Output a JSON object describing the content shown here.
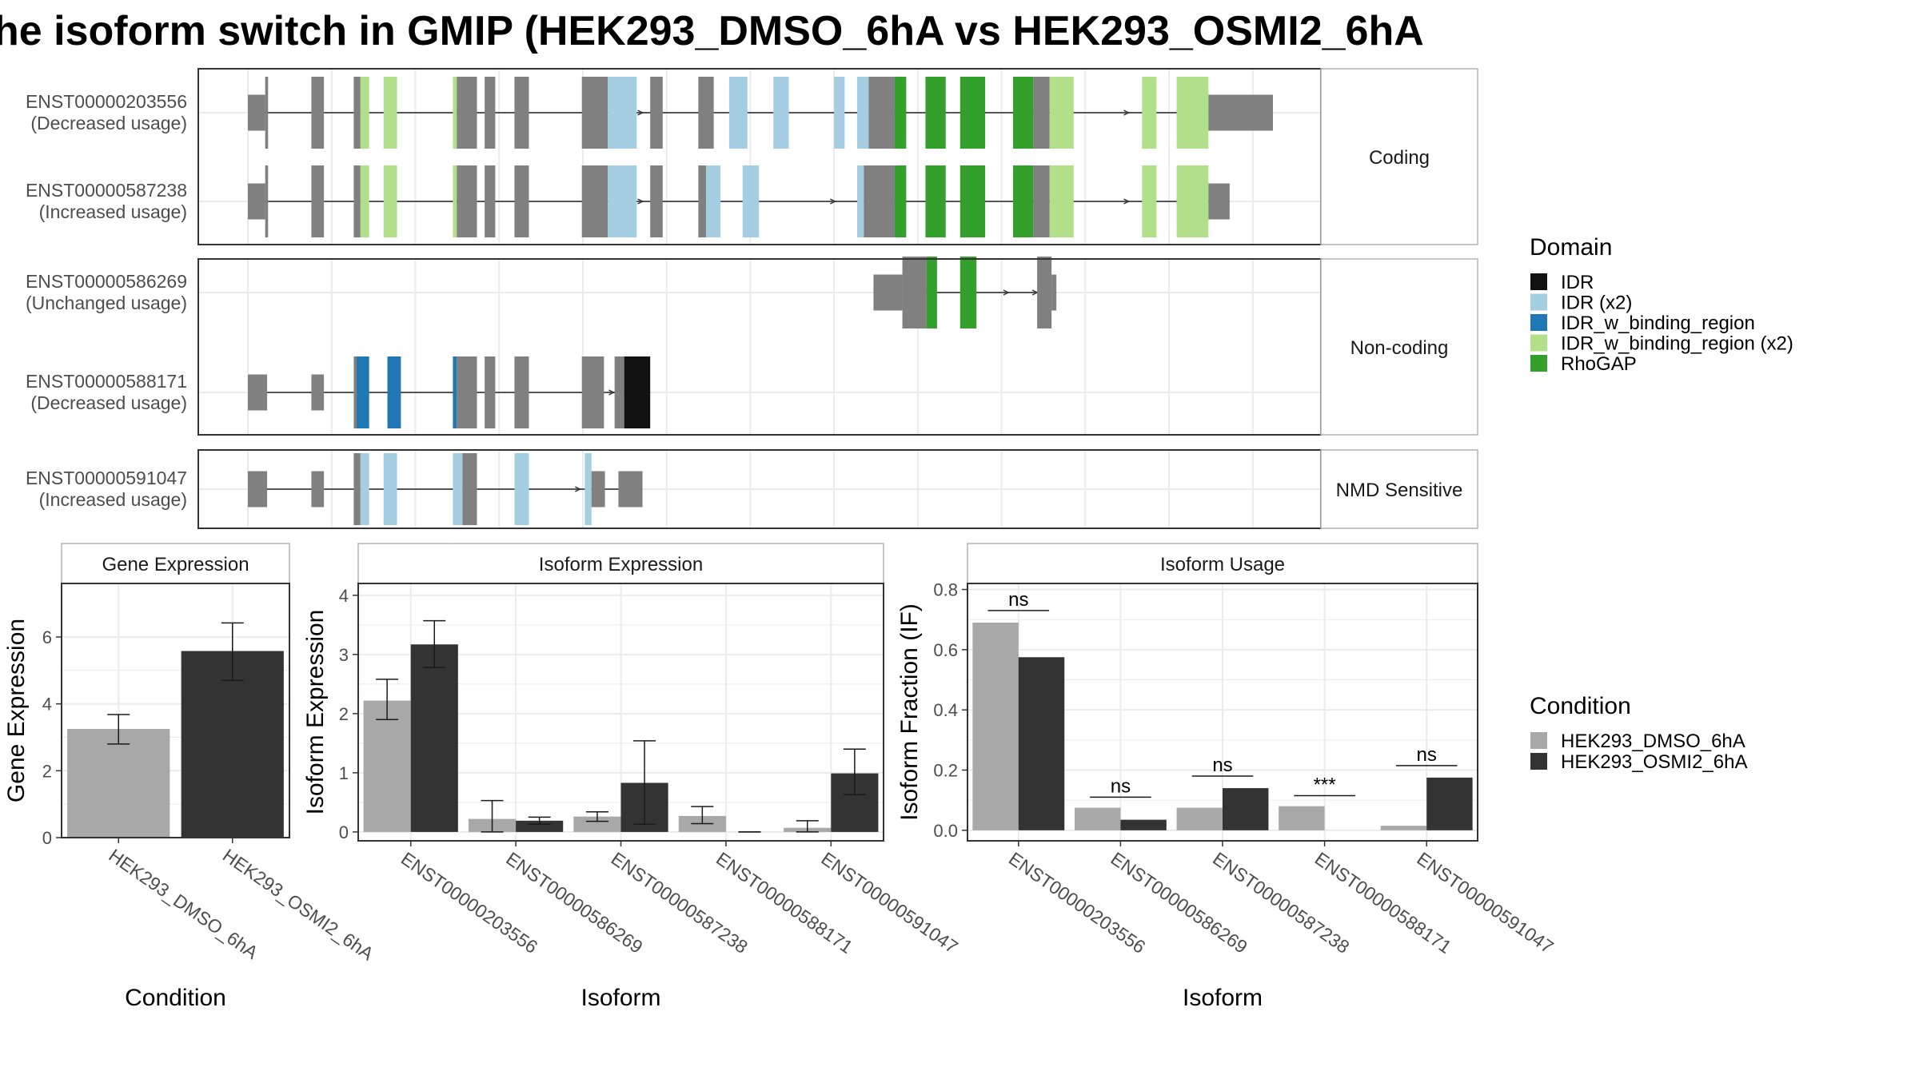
{
  "title": "he isoform switch in GMIP (HEK293_DMSO_6hA vs HEK293_OSMI2_6hA",
  "colors": {
    "exon": "#808080",
    "intron": "#555555",
    "IDR": "#111111",
    "IDR_x2": "#a6cee3",
    "IDR_w_binding_region": "#1f78b4",
    "IDR_w_binding_region_x2": "#b2df8a",
    "RhoGAP": "#33a02c",
    "dmso": "#a8a8a8",
    "osmi": "#333333",
    "grid": "#ebebeb",
    "panel_border": "#333333",
    "strip_border": "#b3b3b3"
  },
  "structure": {
    "groups": [
      {
        "label": "Coding",
        "tracks": [
          {
            "id": "ENST00000203556",
            "usage": "(Decreased usage)",
            "exons": [
              [
                0,
                18,
                "exon",
                0.5
              ],
              [
                18,
                21,
                "exon",
                1
              ],
              [
                66,
                79,
                "exon",
                1
              ],
              [
                110,
                117,
                "exon",
                1
              ],
              [
                117,
                126,
                "IDR_w_binding_region_x2",
                1
              ],
              [
                141,
                155,
                "IDR_w_binding_region_x2",
                1
              ],
              [
                213,
                217,
                "IDR_w_binding_region_x2",
                1
              ],
              [
                217,
                238,
                "exon",
                1
              ],
              [
                246,
                257,
                "exon",
                1
              ],
              [
                277,
                292,
                "exon",
                1
              ],
              [
                347,
                374,
                "exon",
                1
              ],
              [
                374,
                404,
                "IDR_x2",
                1
              ],
              [
                418,
                431,
                "exon",
                1
              ],
              [
                468,
                484,
                "exon",
                1
              ],
              [
                500,
                519,
                "IDR_x2",
                1
              ],
              [
                546,
                562,
                "IDR_x2",
                1
              ],
              [
                609,
                620,
                "IDR_x2",
                1
              ],
              [
                633,
                645,
                "IDR_x2",
                1
              ],
              [
                645,
                672,
                "exon",
                1
              ],
              [
                672,
                684,
                "RhoGAP",
                1
              ],
              [
                704,
                725,
                "RhoGAP",
                1
              ],
              [
                740,
                766,
                "RhoGAP",
                1
              ],
              [
                795,
                816,
                "RhoGAP",
                1
              ],
              [
                816,
                833,
                "exon",
                1
              ],
              [
                833,
                858,
                "IDR_w_binding_region_x2",
                1
              ],
              [
                929,
                944,
                "IDR_w_binding_region_x2",
                1
              ],
              [
                965,
                998,
                "IDR_w_binding_region_x2",
                1
              ],
              [
                998,
                1065,
                "exon",
                0.5
              ]
            ],
            "arrows": [
              380,
              410,
              915,
              970
            ]
          },
          {
            "id": "ENST00000587238",
            "usage": "(Increased usage)",
            "exons": [
              [
                0,
                18,
                "exon",
                0.5
              ],
              [
                18,
                21,
                "exon",
                1
              ],
              [
                66,
                79,
                "exon",
                1
              ],
              [
                110,
                117,
                "exon",
                1
              ],
              [
                117,
                126,
                "IDR_w_binding_region_x2",
                1
              ],
              [
                141,
                155,
                "IDR_w_binding_region_x2",
                1
              ],
              [
                213,
                217,
                "IDR_w_binding_region_x2",
                1
              ],
              [
                217,
                238,
                "exon",
                1
              ],
              [
                246,
                257,
                "exon",
                1
              ],
              [
                277,
                292,
                "exon",
                1
              ],
              [
                347,
                374,
                "exon",
                1
              ],
              [
                374,
                404,
                "IDR_x2",
                1
              ],
              [
                418,
                431,
                "exon",
                1
              ],
              [
                468,
                476,
                "exon",
                1
              ],
              [
                476,
                491,
                "IDR_x2",
                1
              ],
              [
                514,
                531,
                "IDR_x2",
                1
              ],
              [
                633,
                640,
                "IDR_x2",
                1
              ],
              [
                640,
                672,
                "exon",
                1
              ],
              [
                672,
                684,
                "RhoGAP",
                1
              ],
              [
                704,
                725,
                "RhoGAP",
                1
              ],
              [
                740,
                766,
                "RhoGAP",
                1
              ],
              [
                795,
                816,
                "RhoGAP",
                1
              ],
              [
                816,
                833,
                "exon",
                1
              ],
              [
                833,
                858,
                "IDR_w_binding_region_x2",
                1
              ],
              [
                929,
                944,
                "IDR_w_binding_region_x2",
                1
              ],
              [
                965,
                998,
                "IDR_w_binding_region_x2",
                1
              ],
              [
                998,
                1020,
                "exon",
                0.5
              ]
            ],
            "arrows": [
              380,
              410,
              610,
              915,
              970
            ]
          }
        ]
      },
      {
        "label": "Non-coding",
        "tracks": [
          {
            "id": "ENST00000586269",
            "usage": "(Unchanged usage)",
            "exons": [
              [
                650,
                680,
                "exon",
                0.5
              ],
              [
                680,
                705,
                "exon",
                1
              ],
              [
                705,
                716,
                "RhoGAP",
                1
              ],
              [
                740,
                757,
                "RhoGAP",
                1
              ],
              [
                820,
                835,
                "exon",
                1
              ],
              [
                835,
                840,
                "exon",
                0.5
              ]
            ],
            "arrows": [
              790,
              820
            ]
          },
          {
            "id": "ENST00000588171",
            "usage": "(Decreased usage)",
            "exons": [
              [
                0,
                20,
                "exon",
                0.5
              ],
              [
                66,
                79,
                "exon",
                0.5
              ],
              [
                110,
                113,
                "exon",
                1
              ],
              [
                113,
                126,
                "IDR_w_binding_region",
                1
              ],
              [
                145,
                159,
                "IDR_w_binding_region",
                1
              ],
              [
                213,
                217,
                "IDR_w_binding_region",
                1
              ],
              [
                217,
                238,
                "exon",
                1
              ],
              [
                246,
                257,
                "exon",
                1
              ],
              [
                277,
                292,
                "exon",
                1
              ],
              [
                347,
                370,
                "exon",
                1
              ],
              [
                381,
                391,
                "exon",
                1
              ],
              [
                391,
                418,
                "IDR",
                1
              ]
            ],
            "arrows": [
              380,
              410
            ]
          }
        ]
      },
      {
        "label": "NMD Sensitive",
        "tracks": [
          {
            "id": "ENST00000591047",
            "usage": "(Increased usage)",
            "exons": [
              [
                0,
                20,
                "exon",
                0.5
              ],
              [
                66,
                79,
                "exon",
                0.5
              ],
              [
                110,
                117,
                "exon",
                1
              ],
              [
                117,
                126,
                "IDR_x2",
                1
              ],
              [
                141,
                155,
                "IDR_x2",
                1
              ],
              [
                213,
                223,
                "IDR_x2",
                1
              ],
              [
                223,
                238,
                "exon",
                1
              ],
              [
                277,
                292,
                "IDR_x2",
                1
              ],
              [
                350,
                357,
                "IDR_x2",
                1
              ],
              [
                357,
                371,
                "exon",
                0.5
              ],
              [
                385,
                410,
                "exon",
                0.5
              ]
            ],
            "arrows": [
              345
            ]
          }
        ]
      }
    ]
  },
  "legend_domain": {
    "title": "Domain",
    "items": [
      {
        "label": "IDR",
        "color": "#111111"
      },
      {
        "label": "IDR (x2)",
        "color": "#a6cee3"
      },
      {
        "label": "IDR_w_binding_region",
        "color": "#1f78b4"
      },
      {
        "label": "IDR_w_binding_region (x2)",
        "color": "#b2df8a"
      },
      {
        "label": "RhoGAP",
        "color": "#33a02c"
      }
    ]
  },
  "legend_condition": {
    "title": "Condition",
    "items": [
      {
        "label": "HEK293_DMSO_6hA",
        "color": "#a8a8a8"
      },
      {
        "label": "HEK293_OSMI2_6hA",
        "color": "#333333"
      }
    ]
  },
  "chart_data": [
    {
      "type": "bar",
      "title": "Gene Expression",
      "xlabel": "Condition",
      "ylabel": "Gene Expression",
      "ylim": [
        0,
        7.6
      ],
      "yticks": [
        0,
        2,
        4,
        6
      ],
      "categories": [
        "HEK293_DMSO_6hA",
        "HEK293_OSMI2_6hA"
      ],
      "values": [
        3.25,
        5.58
      ],
      "err_low": [
        2.8,
        4.7
      ],
      "err_high": [
        3.68,
        6.42
      ]
    },
    {
      "type": "bar",
      "title": "Isoform Expression",
      "xlabel": "Isoform",
      "ylabel": "Isoform Expression",
      "ylim": [
        -0.15,
        4.2
      ],
      "yticks": [
        0,
        1,
        2,
        3,
        4
      ],
      "categories": [
        "ENST00000203556",
        "ENST00000586269",
        "ENST00000587238",
        "ENST00000588171",
        "ENST00000591047"
      ],
      "series": [
        {
          "name": "HEK293_DMSO_6hA",
          "values": [
            2.22,
            0.22,
            0.26,
            0.27,
            0.07
          ],
          "err_low": [
            1.9,
            0.0,
            0.18,
            0.14,
            0.0
          ],
          "err_high": [
            2.58,
            0.53,
            0.34,
            0.43,
            0.19
          ]
        },
        {
          "name": "HEK293_OSMI2_6hA",
          "values": [
            3.17,
            0.19,
            0.83,
            0.0,
            0.99
          ],
          "err_low": [
            2.78,
            0.13,
            0.13,
            0.0,
            0.63
          ],
          "err_high": [
            3.57,
            0.25,
            1.54,
            0.0,
            1.4
          ]
        }
      ]
    },
    {
      "type": "bar",
      "title": "Isoform Usage",
      "xlabel": "Isoform",
      "ylabel": "Isoform Fraction (IF)",
      "ylim": [
        -0.035,
        0.82
      ],
      "yticks": [
        0.0,
        0.2,
        0.4,
        0.6,
        0.8
      ],
      "ytick_labels": [
        "0.0",
        "0.2",
        "0.4",
        "0.6",
        "0.8"
      ],
      "categories": [
        "ENST00000203556",
        "ENST00000586269",
        "ENST00000587238",
        "ENST00000588171",
        "ENST00000591047"
      ],
      "series": [
        {
          "name": "HEK293_DMSO_6hA",
          "values": [
            0.69,
            0.075,
            0.075,
            0.08,
            0.015
          ]
        },
        {
          "name": "HEK293_OSMI2_6hA",
          "values": [
            0.575,
            0.035,
            0.14,
            0.0,
            0.175
          ]
        }
      ],
      "significance": [
        {
          "label": "ns",
          "y": 0.73
        },
        {
          "label": "ns",
          "y": 0.11
        },
        {
          "label": "ns",
          "y": 0.18
        },
        {
          "label": "***",
          "y": 0.115
        },
        {
          "label": "ns",
          "y": 0.215
        }
      ]
    }
  ]
}
